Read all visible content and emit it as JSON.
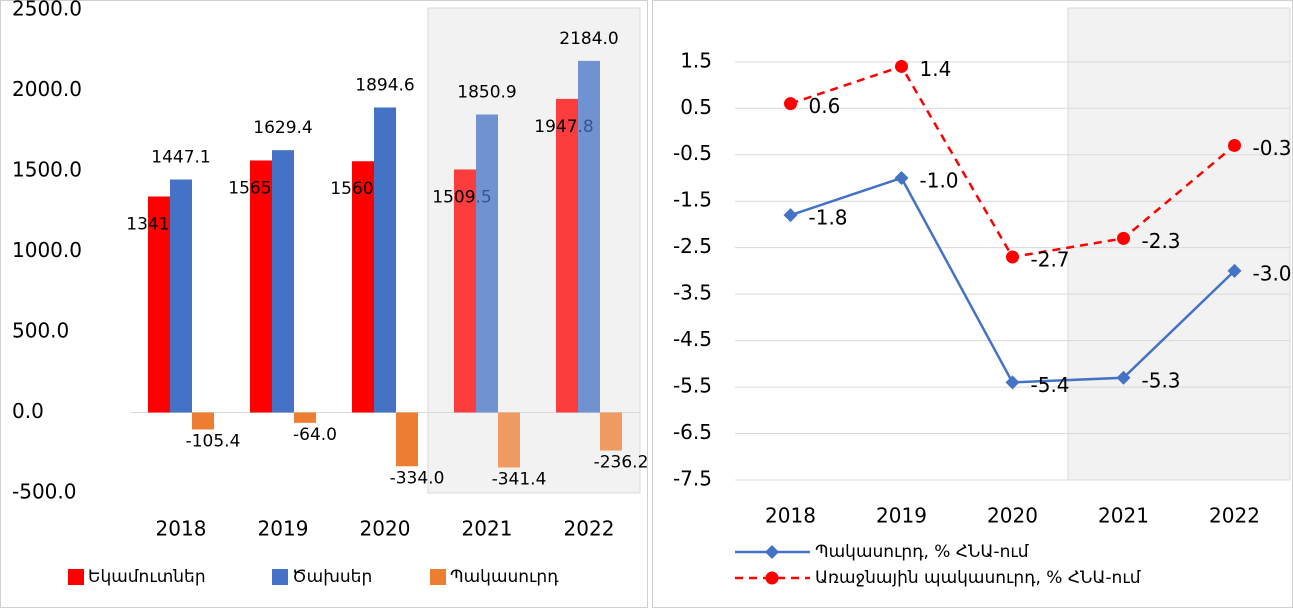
{
  "chart_data": [
    {
      "type": "bar",
      "categories": [
        "2018",
        "2019",
        "2020",
        "2021",
        "2022"
      ],
      "series": [
        {
          "name": "Եկամուտներ",
          "color": "#ff0000",
          "values": [
            1341.7,
            1565.5,
            1560.7,
            1509.5,
            1947.8
          ],
          "value_labels": [
            "1341.7",
            "1565.5",
            "1560.7",
            "1509.5",
            "1947.8"
          ]
        },
        {
          "name": "Ծախսեր",
          "color": "#4472c4",
          "values": [
            1447.1,
            1629.4,
            1894.6,
            1850.9,
            2184.0
          ],
          "value_labels": [
            "1447.1",
            "1629.4",
            "1894.6",
            "1850.9",
            "2184.0"
          ]
        },
        {
          "name": "Պակասուրդ",
          "color": "#ed7d31",
          "values": [
            -105.4,
            -64.0,
            -334.0,
            -341.4,
            -236.2
          ],
          "value_labels": [
            "-105.4",
            "-64.0",
            "-334.0",
            "-341.4",
            "-236.2"
          ]
        }
      ],
      "ylim": [
        -500,
        2500
      ],
      "yticks": [
        {
          "value": -500,
          "label": "-500.0"
        },
        {
          "value": 0,
          "label": "0.0"
        },
        {
          "value": 500,
          "label": "500.0"
        },
        {
          "value": 1000,
          "label": "1000.0"
        },
        {
          "value": 1500,
          "label": "1500.0"
        },
        {
          "value": 2000,
          "label": "2000.0"
        },
        {
          "value": 2500,
          "label": "2500.0"
        }
      ],
      "grid": false,
      "shaded": [
        "2021",
        "2022"
      ],
      "legend": "bottom"
    },
    {
      "type": "line",
      "categories": [
        "2018",
        "2019",
        "2020",
        "2021",
        "2022"
      ],
      "series": [
        {
          "name": "Պակասուրդ, % ՀՆԱ-ում",
          "color": "#4472c4",
          "marker": "diamond",
          "dash": false,
          "values": [
            -1.8,
            -1.0,
            -5.4,
            -5.3,
            -3.0
          ],
          "value_labels": [
            "-1.8",
            "-1.0",
            "-5.4",
            "-5.3",
            "-3.0"
          ]
        },
        {
          "name": "Առաջնային պակասուրդ, % ՀՆԱ-ում",
          "color": "#ff0000",
          "marker": "circle",
          "dash": true,
          "values": [
            0.6,
            1.4,
            -2.7,
            -2.3,
            -0.3
          ],
          "value_labels": [
            "0.6",
            "1.4",
            "-2.7",
            "-2.3",
            "-0.3"
          ]
        }
      ],
      "ylim": [
        -7.5,
        2.4
      ],
      "yticks": [
        -7.5,
        -6.5,
        -5.5,
        -4.5,
        -3.5,
        -2.5,
        -1.5,
        -0.5,
        0.5,
        1.5
      ],
      "grid": true,
      "shaded": [
        "2021",
        "2022"
      ],
      "legend": "bottom"
    }
  ]
}
